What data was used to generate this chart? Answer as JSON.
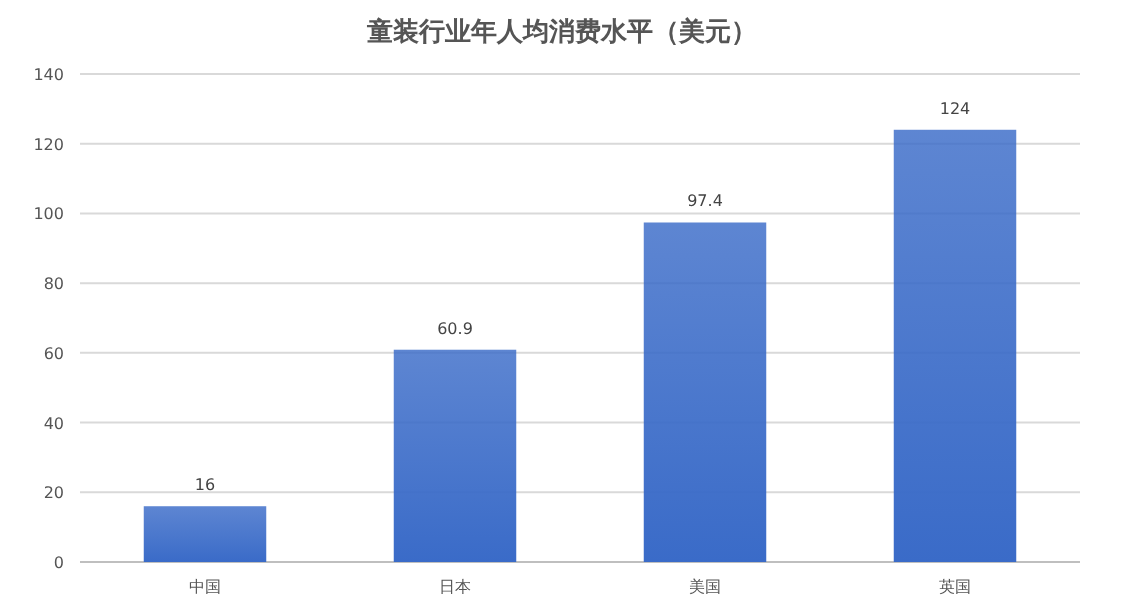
{
  "chart_data": {
    "type": "bar",
    "title": "童装行业年人均消费水平（美元）",
    "categories": [
      "中国",
      "日本",
      "美国",
      "英国"
    ],
    "values": [
      16,
      60.9,
      97.4,
      124
    ],
    "color": "#3a6bc8",
    "ylim": [
      0,
      140
    ],
    "yticks": [
      0,
      20,
      40,
      60,
      80,
      100,
      120,
      140
    ],
    "grid": "y",
    "data_labels": true
  }
}
